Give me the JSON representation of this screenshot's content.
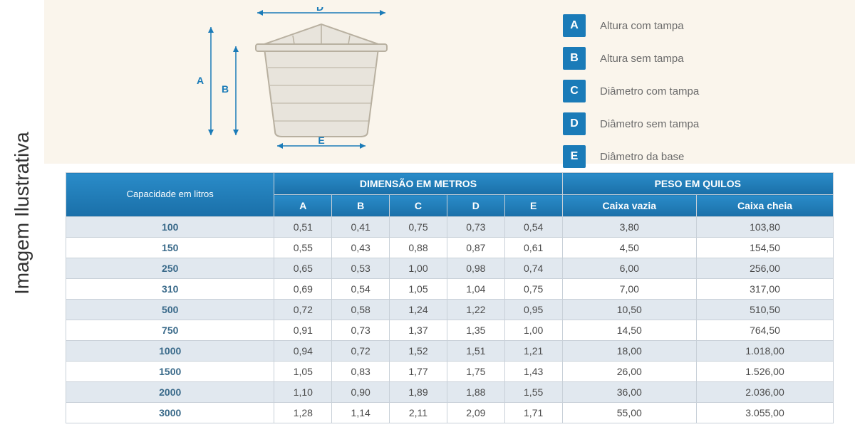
{
  "sidebar_label": "Imagem Ilustrativa",
  "diagram": {
    "labels": {
      "A": "A",
      "B": "B",
      "D": "D",
      "E": "E"
    },
    "stroke_color": "#1a7bb8",
    "tank_fill": "#e8e4dc",
    "tank_stroke": "#b8b0a0",
    "bg": "#faf5ec"
  },
  "legend": {
    "badge_bg": "#1a7bb8",
    "badge_fg": "#ffffff",
    "text_color": "#6b6b6b",
    "items": [
      {
        "key": "A",
        "label": "Altura com tampa"
      },
      {
        "key": "B",
        "label": "Altura sem tampa"
      },
      {
        "key": "C",
        "label": "Diâmetro com tampa"
      },
      {
        "key": "D",
        "label": "Diâmetro sem tampa"
      },
      {
        "key": "E",
        "label": "Diâmetro da base"
      }
    ]
  },
  "table": {
    "header_bg_top": "#2a8cc9",
    "header_bg_bottom": "#1a6fa8",
    "header_fg": "#ffffff",
    "row_alt_bg": "#e1e8ef",
    "row_bg": "#ffffff",
    "border_color": "#c8d0d8",
    "cell_color": "#4a4a4a",
    "capacity_color": "#3a6a8a",
    "headers": {
      "capacity": "Capacidade em litros",
      "dim_group": "DIMENSÃO EM METROS",
      "peso_group": "PESO EM QUILOS",
      "A": "A",
      "B": "B",
      "C": "C",
      "D": "D",
      "E": "E",
      "vazia": "Caixa vazia",
      "cheia": "Caixa cheia"
    },
    "rows": [
      {
        "cap": "100",
        "A": "0,51",
        "B": "0,41",
        "C": "0,75",
        "D": "0,73",
        "E": "0,54",
        "vazia": "3,80",
        "cheia": "103,80"
      },
      {
        "cap": "150",
        "A": "0,55",
        "B": "0,43",
        "C": "0,88",
        "D": "0,87",
        "E": "0,61",
        "vazia": "4,50",
        "cheia": "154,50"
      },
      {
        "cap": "250",
        "A": "0,65",
        "B": "0,53",
        "C": "1,00",
        "D": "0,98",
        "E": "0,74",
        "vazia": "6,00",
        "cheia": "256,00"
      },
      {
        "cap": "310",
        "A": "0,69",
        "B": "0,54",
        "C": "1,05",
        "D": "1,04",
        "E": "0,75",
        "vazia": "7,00",
        "cheia": "317,00"
      },
      {
        "cap": "500",
        "A": "0,72",
        "B": "0,58",
        "C": "1,24",
        "D": "1,22",
        "E": "0,95",
        "vazia": "10,50",
        "cheia": "510,50"
      },
      {
        "cap": "750",
        "A": "0,91",
        "B": "0,73",
        "C": "1,37",
        "D": "1,35",
        "E": "1,00",
        "vazia": "14,50",
        "cheia": "764,50"
      },
      {
        "cap": "1000",
        "A": "0,94",
        "B": "0,72",
        "C": "1,52",
        "D": "1,51",
        "E": "1,21",
        "vazia": "18,00",
        "cheia": "1.018,00"
      },
      {
        "cap": "1500",
        "A": "1,05",
        "B": "0,83",
        "C": "1,77",
        "D": "1,75",
        "E": "1,43",
        "vazia": "26,00",
        "cheia": "1.526,00"
      },
      {
        "cap": "2000",
        "A": "1,10",
        "B": "0,90",
        "C": "1,89",
        "D": "1,88",
        "E": "1,55",
        "vazia": "36,00",
        "cheia": "2.036,00"
      },
      {
        "cap": "3000",
        "A": "1,28",
        "B": "1,14",
        "C": "2,11",
        "D": "2,09",
        "E": "1,71",
        "vazia": "55,00",
        "cheia": "3.055,00"
      }
    ]
  }
}
